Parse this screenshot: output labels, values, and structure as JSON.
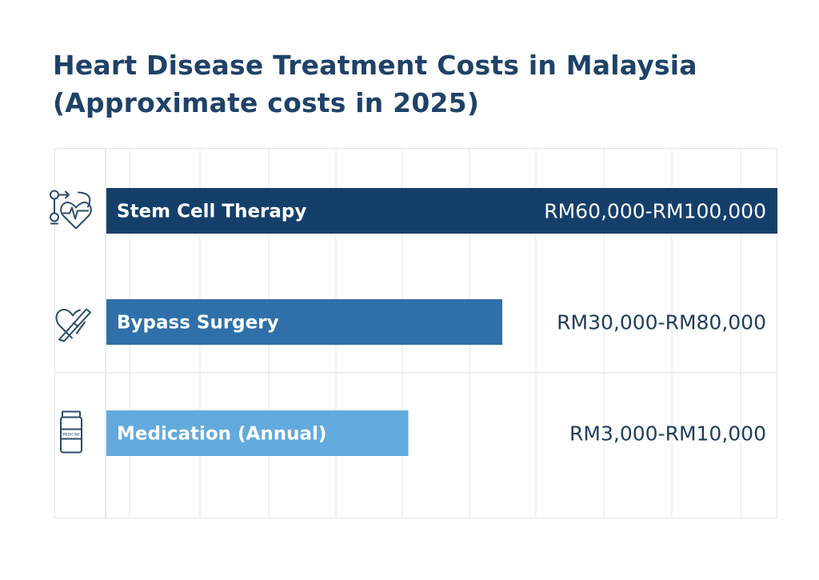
{
  "title_line1": "Heart Disease Treatment Costs in Malaysia",
  "title_line2": "(Approximate costs in 2025)",
  "chart_data": {
    "type": "bar",
    "orientation": "horizontal",
    "title": "Heart Disease Treatment Costs in Malaysia (Approximate costs in 2025)",
    "categories": [
      "Stem Cell Therapy",
      "Bypass Surgery",
      "Medication (Annual)"
    ],
    "value_labels": [
      "RM60,000-RM100,000",
      "RM30,000-RM80,000",
      "RM3,000-RM10,000"
    ],
    "ranges": [
      [
        60000,
        100000
      ],
      [
        30000,
        80000
      ],
      [
        3000,
        10000
      ]
    ],
    "bar_fill": [
      1.0,
      0.59,
      0.45
    ],
    "icons": [
      "stem-cell-heart-icon",
      "heart-bypass-icon",
      "medicine-bottle-icon"
    ],
    "icon_text": [
      "",
      "",
      "MEDICINE"
    ],
    "colors": [
      "#153f6b",
      "#2f70aa",
      "#62aadd"
    ],
    "value_label_color": "#1f3d5e",
    "grid": true,
    "xlabel": "",
    "ylabel": ""
  }
}
